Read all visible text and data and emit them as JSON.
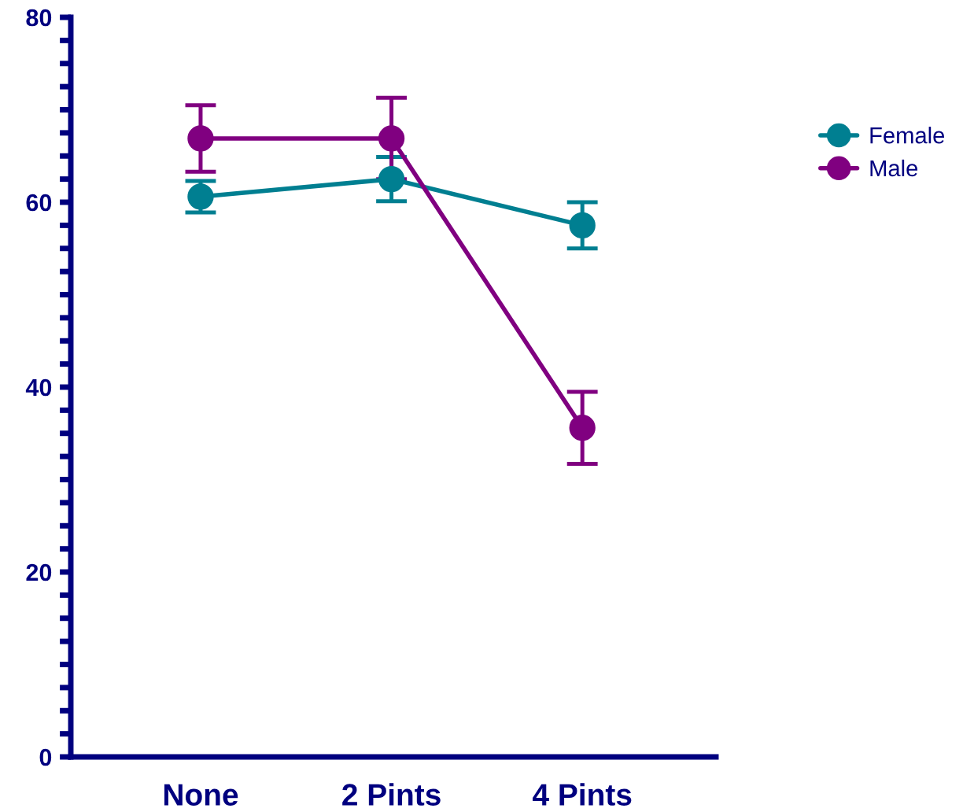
{
  "chart_data": {
    "type": "line",
    "categories": [
      "None",
      "2 Pints",
      "4 Pints"
    ],
    "series": [
      {
        "name": "Female",
        "color": "#007f91",
        "values": [
          60.6,
          62.5,
          57.5
        ],
        "errors": [
          1.7,
          2.4,
          2.5
        ]
      },
      {
        "name": "Male",
        "color": "#800080",
        "values": [
          66.9,
          66.9,
          35.6
        ],
        "errors": [
          3.6,
          4.4,
          3.9
        ]
      }
    ],
    "ylim": [
      0,
      80
    ],
    "yticks": [
      0,
      {
        "value": 2.5,
        "label": null
      },
      {
        "value": 5,
        "label": null
      },
      {
        "value": 7.5,
        "label": null
      },
      {
        "value": 10,
        "label": null
      },
      {
        "value": 12.5,
        "label": null
      },
      {
        "value": 15,
        "label": null
      },
      {
        "value": 17.5,
        "label": null
      },
      20,
      {
        "value": 22.5,
        "label": null
      },
      {
        "value": 25,
        "label": null
      },
      {
        "value": 27.5,
        "label": null
      },
      {
        "value": 30,
        "label": null
      },
      {
        "value": 32.5,
        "label": null
      },
      {
        "value": 35,
        "label": null
      },
      {
        "value": 37.5,
        "label": null
      },
      40,
      {
        "value": 42.5,
        "label": null
      },
      {
        "value": 45,
        "label": null
      },
      {
        "value": 47.5,
        "label": null
      },
      {
        "value": 50,
        "label": null
      },
      {
        "value": 52.5,
        "label": null
      },
      {
        "value": 55,
        "label": null
      },
      {
        "value": 57.5,
        "label": null
      },
      60,
      {
        "value": 62.5,
        "label": null
      },
      {
        "value": 65,
        "label": null
      },
      {
        "value": 67.5,
        "label": null
      },
      {
        "value": 70,
        "label": null
      },
      {
        "value": 72.5,
        "label": null
      },
      {
        "value": 75,
        "label": null
      },
      {
        "value": 77.5,
        "label": null
      },
      80
    ],
    "marker": "circle",
    "line_style": "solid",
    "legend": "top right",
    "grid": false
  }
}
